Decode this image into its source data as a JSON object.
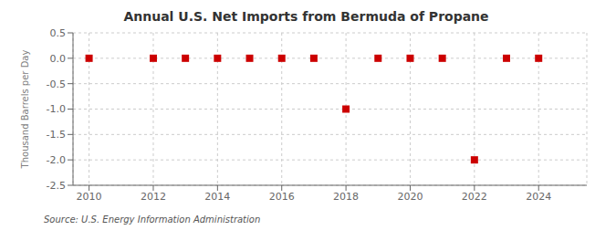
{
  "chart_data": {
    "type": "scatter",
    "title": "Annual U.S. Net Imports from Bermuda of Propane",
    "ylabel": "Thousand Barrels per Day",
    "source": "Source: U.S. Energy Information Administration",
    "x": [
      2010,
      2012,
      2013,
      2014,
      2015,
      2016,
      2017,
      2018,
      2019,
      2020,
      2021,
      2022,
      2023,
      2024
    ],
    "values": [
      0.0,
      0.0,
      0.0,
      0.0,
      0.0,
      0.0,
      0.0,
      -1.0,
      0.0,
      0.0,
      0.0,
      -2.0,
      0.0,
      0.0
    ],
    "color": "#cc0000",
    "marker": "square",
    "xlim": [
      2009.5,
      2025.5
    ],
    "ylim": [
      -2.5,
      0.5
    ],
    "xticks": [
      2010,
      2012,
      2014,
      2016,
      2018,
      2020,
      2022,
      2024
    ],
    "yticks": [
      0.5,
      {
        "value": 0,
        "label": "0.0"
      },
      -0.5,
      {
        "value": -1,
        "label": "-1.0"
      },
      -1.5,
      {
        "value": -2,
        "label": "-2.0"
      },
      -2.5
    ],
    "grid": true
  }
}
